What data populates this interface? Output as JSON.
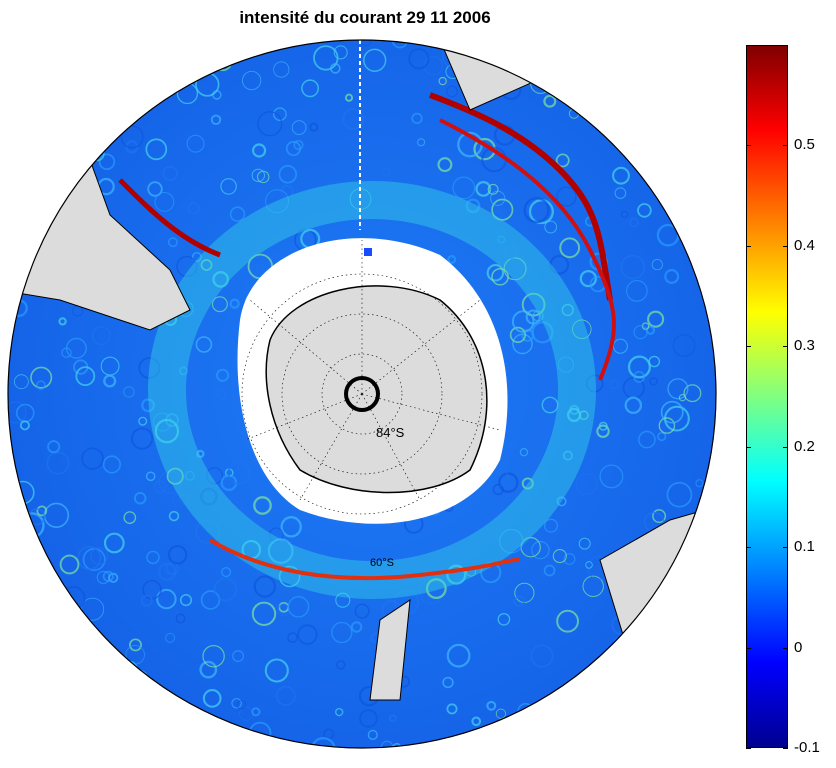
{
  "title": "intensité du courant 29 11 2006",
  "map": {
    "projection": "south-polar stereographic",
    "center_label": "84°S",
    "ring_labels": [
      "60°S"
    ]
  },
  "colorbar": {
    "colormap": "jet",
    "min": -0.1,
    "max": 0.6,
    "ticks": [
      "-0.1",
      "0",
      "0.1",
      "0.2",
      "0.3",
      "0.4",
      "0.5"
    ]
  },
  "colors": {
    "land": "#dcdcdc",
    "ice": "#ffffff",
    "ocean_background": "#1a6cf0",
    "strong_current": "#b00000"
  }
}
